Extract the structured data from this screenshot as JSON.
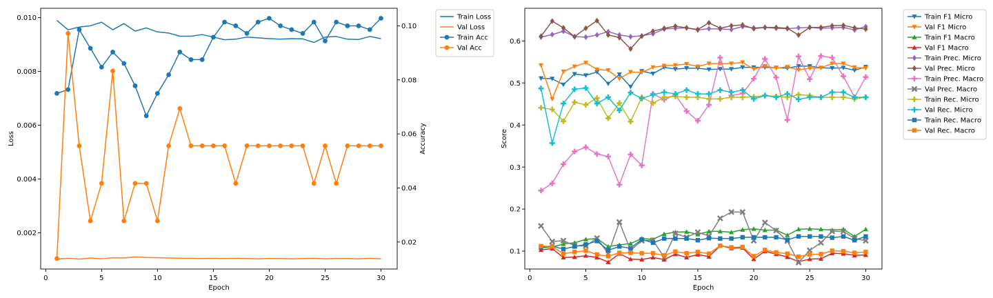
{
  "chart_data": [
    {
      "type": "line",
      "title": "",
      "xlabel": "Epoch",
      "ylabel": "Loss",
      "y2label": "Accuracy",
      "xlim": [
        -0.45,
        31.45
      ],
      "ylim": [
        0.00065,
        0.01035
      ],
      "y2lim": [
        0.01,
        0.1065
      ],
      "xticks": [
        0,
        5,
        10,
        15,
        20,
        25,
        30
      ],
      "yticks": [
        0.002,
        0.004,
        0.006,
        0.008,
        0.01
      ],
      "ytick_labels": [
        "0.002",
        "0.004",
        "0.006",
        "0.008",
        "0.010"
      ],
      "y2ticks": [
        0.02,
        0.04,
        0.06,
        0.08,
        0.1
      ],
      "y2tick_labels": [
        "0.02",
        "0.04",
        "0.06",
        "0.08",
        "0.10"
      ],
      "grid": false,
      "legend_position": "outside top-right",
      "x": [
        1,
        2,
        3,
        4,
        5,
        6,
        7,
        8,
        9,
        10,
        11,
        12,
        13,
        14,
        15,
        16,
        17,
        18,
        19,
        20,
        21,
        22,
        23,
        24,
        25,
        26,
        27,
        28,
        29,
        30
      ],
      "series": [
        {
          "name": "Train Loss",
          "axis": "left",
          "color": "#1f77b4",
          "marker": "none",
          "values": [
            0.0099,
            0.00955,
            0.00965,
            0.0097,
            0.00983,
            0.00955,
            0.00978,
            0.0095,
            0.00962,
            0.00947,
            0.00943,
            0.00931,
            0.00931,
            0.00937,
            0.00928,
            0.00918,
            0.0092,
            0.00928,
            0.00925,
            0.00922,
            0.0092,
            0.00922,
            0.00921,
            0.00908,
            0.00928,
            0.0093,
            0.0092,
            0.00919,
            0.0093,
            0.00922
          ]
        },
        {
          "name": "Val Loss",
          "axis": "left",
          "color": "#ff7f0e",
          "marker": "none",
          "values": [
            0.00102,
            0.00105,
            0.00102,
            0.00106,
            0.00103,
            0.00107,
            0.00106,
            0.0011,
            0.00108,
            0.00107,
            0.00106,
            0.00105,
            0.00105,
            0.00104,
            0.00105,
            0.00104,
            0.00105,
            0.00104,
            0.00103,
            0.00104,
            0.00104,
            0.00103,
            0.00104,
            0.00105,
            0.00103,
            0.00104,
            0.00104,
            0.00103,
            0.00105,
            0.00103
          ]
        },
        {
          "name": "Train Acc",
          "axis": "right",
          "color": "#1f77b4",
          "marker": "circle",
          "values": [
            0.075,
            0.0764,
            0.0986,
            0.0917,
            0.0847,
            0.0903,
            0.0861,
            0.0778,
            0.0667,
            0.075,
            0.0819,
            0.0903,
            0.0875,
            0.0875,
            0.0958,
            0.1014,
            0.1,
            0.0972,
            0.1014,
            0.1028,
            0.1,
            0.0986,
            0.0972,
            0.1014,
            0.0944,
            0.1014,
            0.1,
            0.1,
            0.0986,
            0.1028
          ]
        },
        {
          "name": "Val Acc",
          "axis": "right",
          "color": "#ff7f0e",
          "marker": "circle",
          "values": [
            0.0139,
            0.0972,
            0.0556,
            0.0278,
            0.0417,
            0.0833,
            0.0278,
            0.0417,
            0.0417,
            0.0278,
            0.0556,
            0.0694,
            0.0556,
            0.0556,
            0.0556,
            0.0556,
            0.0417,
            0.0556,
            0.0556,
            0.0556,
            0.0556,
            0.0556,
            0.0556,
            0.0417,
            0.0556,
            0.0417,
            0.0556,
            0.0556,
            0.0556,
            0.0556
          ]
        }
      ]
    },
    {
      "type": "line",
      "title": "",
      "xlabel": "Epoch",
      "ylabel": "Score",
      "xlim": [
        -0.45,
        31.45
      ],
      "ylim": [
        0.0575,
        0.6775
      ],
      "xticks": [
        0,
        5,
        10,
        15,
        20,
        25,
        30
      ],
      "yticks": [
        0.1,
        0.2,
        0.3,
        0.4,
        0.5,
        0.6
      ],
      "ytick_labels": [
        "0.1",
        "0.2",
        "0.3",
        "0.4",
        "0.5",
        "0.6"
      ],
      "grid": false,
      "legend_position": "outside top-right",
      "x": [
        1,
        2,
        3,
        4,
        5,
        6,
        7,
        8,
        9,
        10,
        11,
        12,
        13,
        14,
        15,
        16,
        17,
        18,
        19,
        20,
        21,
        22,
        23,
        24,
        25,
        26,
        27,
        28,
        29,
        30
      ],
      "series": [
        {
          "name": "Train F1 Micro",
          "color": "#1f77b4",
          "marker": "triangle-down",
          "values": [
            0.511,
            0.51,
            0.496,
            0.521,
            0.518,
            0.526,
            0.498,
            0.52,
            0.491,
            0.528,
            0.522,
            0.537,
            0.533,
            0.535,
            0.535,
            0.532,
            0.533,
            0.533,
            0.537,
            0.537,
            0.537,
            0.536,
            0.535,
            0.54,
            0.54,
            0.536,
            0.535,
            0.536,
            0.53,
            0.538
          ]
        },
        {
          "name": "Val F1 Micro",
          "color": "#ff7f0e",
          "marker": "triangle-down",
          "values": [
            0.542,
            0.462,
            0.527,
            0.539,
            0.548,
            0.532,
            0.53,
            0.51,
            0.526,
            0.525,
            0.537,
            0.541,
            0.542,
            0.545,
            0.539,
            0.546,
            0.546,
            0.546,
            0.549,
            0.533,
            0.54,
            0.535,
            0.538,
            0.531,
            0.535,
            0.536,
            0.546,
            0.546,
            0.537,
            0.535
          ]
        },
        {
          "name": "Train F1 Macro",
          "color": "#2ca02c",
          "marker": "triangle-up",
          "values": [
            0.108,
            0.11,
            0.117,
            0.12,
            0.128,
            0.13,
            0.111,
            0.115,
            0.118,
            0.13,
            0.128,
            0.141,
            0.145,
            0.146,
            0.14,
            0.147,
            0.147,
            0.145,
            0.151,
            0.153,
            0.15,
            0.15,
            0.138,
            0.152,
            0.153,
            0.152,
            0.15,
            0.152,
            0.135,
            0.152
          ]
        },
        {
          "name": "Val F1 Macro",
          "color": "#d62728",
          "marker": "triangle-up",
          "values": [
            0.103,
            0.106,
            0.085,
            0.086,
            0.089,
            0.085,
            0.074,
            0.094,
            0.081,
            0.08,
            0.085,
            0.08,
            0.093,
            0.085,
            0.092,
            0.087,
            0.113,
            0.107,
            0.108,
            0.081,
            0.1,
            0.093,
            0.086,
            0.075,
            0.081,
            0.082,
            0.095,
            0.094,
            0.09,
            0.091
          ]
        },
        {
          "name": "Train Prec. Micro",
          "color": "#9467bd",
          "marker": "diamond",
          "values": [
            0.609,
            0.615,
            0.623,
            0.61,
            0.609,
            0.614,
            0.622,
            0.614,
            0.61,
            0.612,
            0.617,
            0.628,
            0.63,
            0.631,
            0.626,
            0.629,
            0.628,
            0.627,
            0.634,
            0.631,
            0.632,
            0.63,
            0.629,
            0.631,
            0.632,
            0.63,
            0.631,
            0.632,
            0.626,
            0.634
          ]
        },
        {
          "name": "Val Prec. Micro",
          "color": "#8c564b",
          "marker": "diamond",
          "values": [
            0.611,
            0.647,
            0.631,
            0.61,
            0.63,
            0.648,
            0.614,
            0.608,
            0.581,
            0.611,
            0.623,
            0.63,
            0.635,
            0.631,
            0.627,
            0.643,
            0.63,
            0.636,
            0.638,
            0.629,
            0.632,
            0.632,
            0.63,
            0.614,
            0.632,
            0.632,
            0.636,
            0.637,
            0.631,
            0.628
          ]
        },
        {
          "name": "Train Prec. Macro",
          "color": "#e377c2",
          "marker": "plus",
          "values": [
            0.244,
            0.261,
            0.307,
            0.337,
            0.347,
            0.331,
            0.325,
            0.258,
            0.33,
            0.304,
            0.474,
            0.46,
            0.472,
            0.433,
            0.41,
            0.448,
            0.56,
            0.47,
            0.475,
            0.51,
            0.557,
            0.513,
            0.412,
            0.563,
            0.509,
            0.564,
            0.56,
            0.516,
            0.466,
            0.514
          ]
        },
        {
          "name": "Val Prec. Macro",
          "color": "#7f7f7f",
          "marker": "x",
          "values": [
            0.16,
            0.123,
            0.125,
            0.113,
            0.112,
            0.131,
            0.094,
            0.169,
            0.102,
            0.125,
            0.126,
            0.085,
            0.142,
            0.133,
            0.145,
            0.136,
            0.178,
            0.193,
            0.193,
            0.125,
            0.168,
            0.149,
            0.124,
            0.073,
            0.102,
            0.12,
            0.147,
            0.147,
            0.13,
            0.125
          ]
        },
        {
          "name": "Train Rec. Micro",
          "color": "#bcbd22",
          "marker": "plus",
          "values": [
            0.441,
            0.437,
            0.409,
            0.454,
            0.448,
            0.464,
            0.416,
            0.452,
            0.408,
            0.466,
            0.452,
            0.466,
            0.468,
            0.466,
            0.466,
            0.462,
            0.462,
            0.466,
            0.466,
            0.467,
            0.47,
            0.468,
            0.466,
            0.472,
            0.47,
            0.466,
            0.466,
            0.466,
            0.462,
            0.466
          ]
        },
        {
          "name": "Val Rec. Micro",
          "color": "#17becf",
          "marker": "plus",
          "values": [
            0.487,
            0.357,
            0.451,
            0.485,
            0.488,
            0.451,
            0.466,
            0.435,
            0.477,
            0.463,
            0.472,
            0.478,
            0.474,
            0.483,
            0.474,
            0.474,
            0.483,
            0.478,
            0.483,
            0.462,
            0.47,
            0.466,
            0.474,
            0.461,
            0.466,
            0.466,
            0.478,
            0.478,
            0.466,
            0.466
          ]
        },
        {
          "name": "Train Rec. Macro",
          "color": "#1f77b4",
          "marker": "square",
          "values": [
            0.11,
            0.112,
            0.105,
            0.111,
            0.116,
            0.124,
            0.102,
            0.111,
            0.107,
            0.128,
            0.12,
            0.13,
            0.13,
            0.13,
            0.126,
            0.131,
            0.13,
            0.13,
            0.133,
            0.133,
            0.133,
            0.133,
            0.127,
            0.135,
            0.135,
            0.135,
            0.132,
            0.135,
            0.126,
            0.135
          ]
        },
        {
          "name": "Val Rec. Macro",
          "color": "#ff7f0e",
          "marker": "square",
          "values": [
            0.112,
            0.111,
            0.094,
            0.098,
            0.101,
            0.092,
            0.088,
            0.096,
            0.096,
            0.095,
            0.095,
            0.09,
            0.099,
            0.095,
            0.098,
            0.094,
            0.113,
            0.109,
            0.11,
            0.088,
            0.103,
            0.097,
            0.094,
            0.087,
            0.092,
            0.093,
            0.101,
            0.1,
            0.096,
            0.098
          ]
        }
      ]
    }
  ]
}
